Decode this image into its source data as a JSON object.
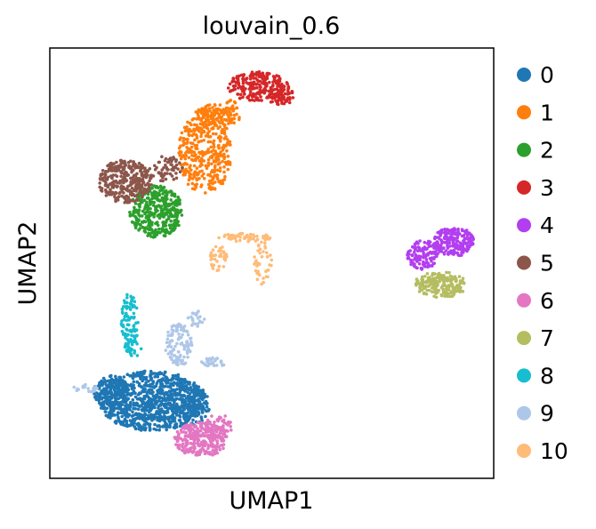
{
  "chart_data": {
    "type": "scatter",
    "title": "louvain_0.6",
    "xlabel": "UMAP1",
    "ylabel": "UMAP2",
    "xlim": [
      0,
      100
    ],
    "ylim": [
      0,
      100
    ],
    "grid": false,
    "legend_position": "right",
    "series": [
      {
        "name": "0",
        "color": "#1f77b4",
        "blobs": [
          {
            "cx": 23,
            "cy": 18,
            "rx": 12,
            "ry": 7,
            "n": 900
          },
          {
            "cx": 14,
            "cy": 20,
            "rx": 4,
            "ry": 4,
            "n": 150
          },
          {
            "cx": 31,
            "cy": 17,
            "rx": 5,
            "ry": 5,
            "n": 150
          }
        ]
      },
      {
        "name": "1",
        "color": "#ff7f0e",
        "blobs": [
          {
            "cx": 35,
            "cy": 76,
            "rx": 6,
            "ry": 10,
            "n": 380
          },
          {
            "cx": 37,
            "cy": 84,
            "rx": 4,
            "ry": 3,
            "n": 80
          },
          {
            "cx": 41,
            "cy": 85,
            "rx": 2,
            "ry": 3,
            "n": 30
          }
        ]
      },
      {
        "name": "2",
        "color": "#2ca02c",
        "blobs": [
          {
            "cx": 24,
            "cy": 62,
            "rx": 6,
            "ry": 6,
            "n": 380
          }
        ]
      },
      {
        "name": "3",
        "color": "#d62728",
        "blobs": [
          {
            "cx": 47,
            "cy": 91,
            "rx": 7,
            "ry": 3.5,
            "n": 230
          },
          {
            "cx": 52,
            "cy": 89,
            "rx": 3,
            "ry": 2.5,
            "n": 50
          }
        ]
      },
      {
        "name": "4",
        "color": "#b23ef0",
        "blobs": [
          {
            "cx": 91,
            "cy": 55,
            "rx": 4.5,
            "ry": 3.5,
            "n": 200
          },
          {
            "cx": 84,
            "cy": 52,
            "rx": 3.5,
            "ry": 3.5,
            "n": 120
          }
        ]
      },
      {
        "name": "5",
        "color": "#8c564b",
        "blobs": [
          {
            "cx": 17,
            "cy": 69,
            "rx": 6,
            "ry": 5,
            "n": 320
          },
          {
            "cx": 26,
            "cy": 72,
            "rx": 4,
            "ry": 3,
            "n": 60
          }
        ]
      },
      {
        "name": "6",
        "color": "#e377c2",
        "blobs": [
          {
            "cx": 34,
            "cy": 9,
            "rx": 6,
            "ry": 4,
            "n": 280
          },
          {
            "cx": 38,
            "cy": 12,
            "rx": 3,
            "ry": 3,
            "n": 60
          }
        ]
      },
      {
        "name": "7",
        "color": "#b5bd61",
        "blobs": [
          {
            "cx": 88,
            "cy": 45,
            "rx": 6,
            "ry": 3,
            "n": 200
          }
        ]
      },
      {
        "name": "8",
        "color": "#17becf",
        "blobs": [
          {
            "cx": 18,
            "cy": 36,
            "rx": 2,
            "ry": 7,
            "n": 100
          },
          {
            "cx": 19,
            "cy": 30,
            "rx": 2,
            "ry": 2,
            "n": 20
          }
        ]
      },
      {
        "name": "9",
        "color": "#aec7e8",
        "blobs": [
          {
            "cx": 29,
            "cy": 31,
            "rx": 3,
            "ry": 5,
            "n": 110
          },
          {
            "cx": 37,
            "cy": 27,
            "rx": 3,
            "ry": 1,
            "n": 30
          },
          {
            "cx": 8,
            "cy": 21,
            "rx": 3,
            "ry": 1,
            "n": 20
          },
          {
            "cx": 33,
            "cy": 37,
            "rx": 2,
            "ry": 2,
            "n": 20
          }
        ]
      },
      {
        "name": "10",
        "color": "#ffbb78",
        "blobs": [
          {
            "cx": 44,
            "cy": 56,
            "rx": 6,
            "ry": 1,
            "n": 60
          },
          {
            "cx": 38,
            "cy": 51,
            "rx": 2,
            "ry": 3,
            "n": 40
          },
          {
            "cx": 48,
            "cy": 50,
            "rx": 2,
            "ry": 5,
            "n": 40
          }
        ]
      }
    ]
  }
}
